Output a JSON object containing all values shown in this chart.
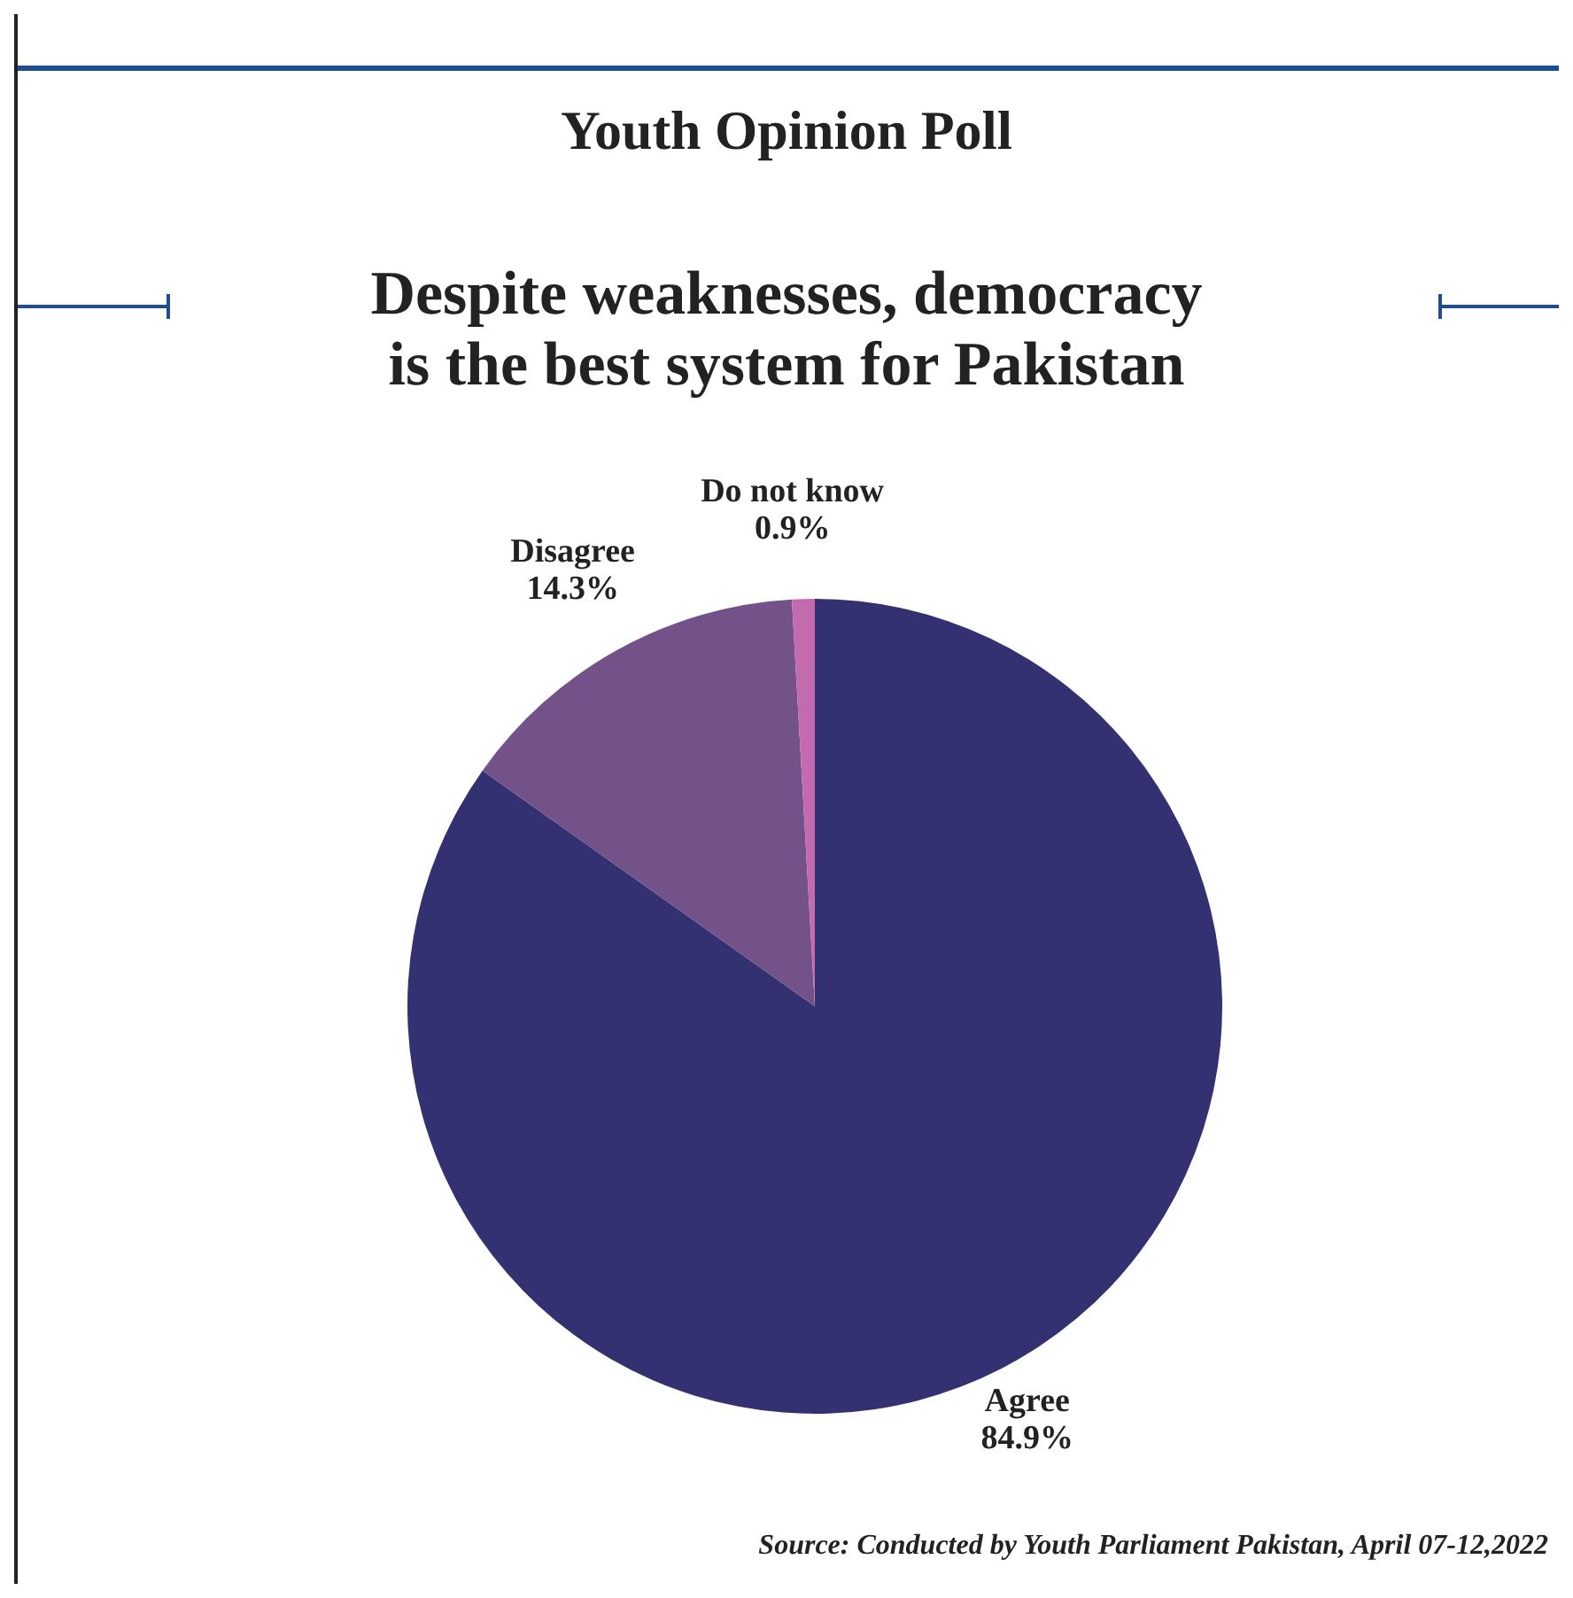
{
  "chart_data": {
    "type": "pie",
    "title": "Youth Opinion Poll",
    "subtitle": "Despite weaknesses, democracy\nis the best system for Pakistan",
    "categories": [
      "Agree",
      "Disagree",
      "Do not know"
    ],
    "values": [
      84.9,
      14.3,
      0.9
    ],
    "value_labels": [
      "84.9%",
      "14.3%",
      "0.9%"
    ],
    "colors": [
      "#343172",
      "#735289",
      "#c46bb0"
    ],
    "annotations": [
      "Source: Conducted by Youth Parliament Pakistan, April 07-12,2022"
    ]
  }
}
